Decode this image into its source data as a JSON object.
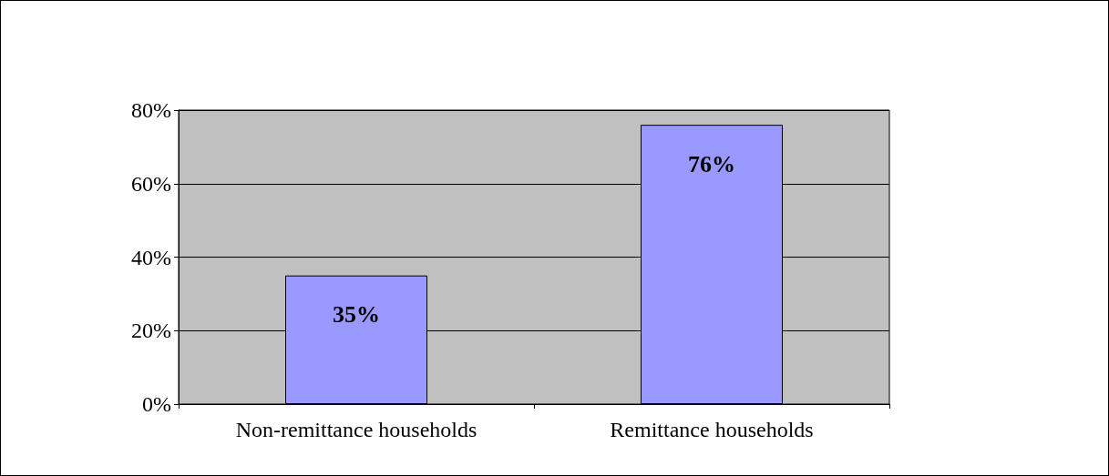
{
  "chart_data": {
    "type": "bar",
    "categories": [
      "Non-remittance households",
      "Remittance households"
    ],
    "values": [
      35,
      76
    ],
    "color": "#9999ff",
    "value_labels": [
      "35%",
      "76%"
    ],
    "ylim": [
      0,
      80
    ],
    "yticks": [
      {
        "value": 0,
        "label": "0%"
      },
      {
        "value": 20,
        "label": "20%"
      },
      {
        "value": 40,
        "label": "40%"
      },
      {
        "value": 60,
        "label": "60%"
      },
      {
        "value": 80,
        "label": "80%"
      }
    ],
    "grid": "y"
  }
}
